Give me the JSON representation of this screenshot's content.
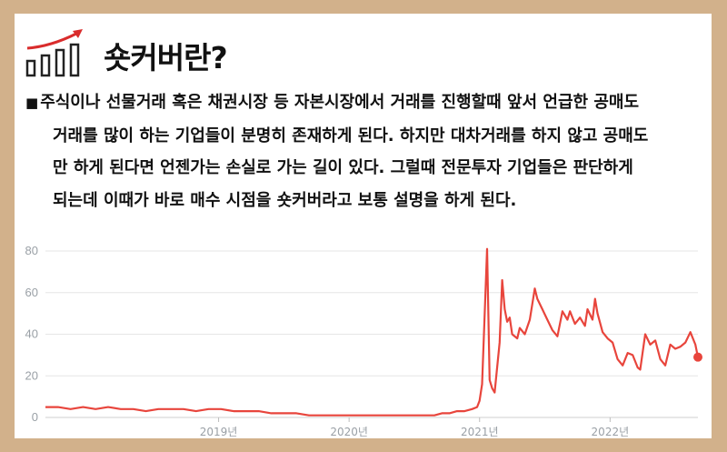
{
  "header": {
    "title": "숏커버란?"
  },
  "paragraph": {
    "bullet": "■",
    "lines": [
      "주식이나 선물거래 혹은 채권시장 등 자본시장에서 거래를 진행할때 앞서 언급한 공매도",
      "거래를 많이 하는 기업들이 분명히 존재하게 된다. 하지만 대차거래를 하지 않고 공매도",
      "만 하게 된다면 언젠가는 손실로 가는 길이 있다. 그럴때 전문투자 기업들은 판단하게",
      "되는데 이때가 바로 매수 시점을 숏커버라고 보통 설명을 하게 된다."
    ]
  },
  "colors": {
    "page_border": "#d2b18b",
    "line": "#e8453c",
    "grid": "#e6e6e6",
    "axis_text": "#9aa0a6"
  },
  "chart_data": {
    "type": "line",
    "x_ticks": [
      {
        "date": "2019-01-06",
        "label": "2019년"
      },
      {
        "date": "2020-01-05",
        "label": "2020년"
      },
      {
        "date": "2021-01-03",
        "label": "2021년"
      },
      {
        "date": "2022-01-02",
        "label": "2022년"
      }
    ],
    "ylim": [
      0,
      80
    ],
    "yticks": [
      0,
      20,
      40,
      60,
      80
    ],
    "grid": true,
    "series": [
      {
        "end_marker": true,
        "points": [
          [
            "2017-09-10",
            5
          ],
          [
            "2017-10-15",
            5
          ],
          [
            "2017-11-19",
            4
          ],
          [
            "2017-12-24",
            5
          ],
          [
            "2018-01-28",
            4
          ],
          [
            "2018-03-04",
            5
          ],
          [
            "2018-04-08",
            4
          ],
          [
            "2018-05-13",
            4
          ],
          [
            "2018-06-17",
            3
          ],
          [
            "2018-07-22",
            4
          ],
          [
            "2018-08-26",
            4
          ],
          [
            "2018-09-30",
            4
          ],
          [
            "2018-11-04",
            3
          ],
          [
            "2018-12-09",
            4
          ],
          [
            "2019-01-13",
            4
          ],
          [
            "2019-02-17",
            3
          ],
          [
            "2019-03-24",
            3
          ],
          [
            "2019-04-28",
            3
          ],
          [
            "2019-06-02",
            2
          ],
          [
            "2019-07-07",
            2
          ],
          [
            "2019-08-11",
            2
          ],
          [
            "2019-09-15",
            1
          ],
          [
            "2019-10-20",
            1
          ],
          [
            "2019-11-24",
            1
          ],
          [
            "2019-12-29",
            1
          ],
          [
            "2020-02-02",
            1
          ],
          [
            "2020-03-08",
            1
          ],
          [
            "2020-04-12",
            1
          ],
          [
            "2020-05-17",
            1
          ],
          [
            "2020-06-21",
            1
          ],
          [
            "2020-07-26",
            1
          ],
          [
            "2020-08-30",
            1
          ],
          [
            "2020-09-20",
            2
          ],
          [
            "2020-10-11",
            2
          ],
          [
            "2020-11-01",
            3
          ],
          [
            "2020-11-22",
            3
          ],
          [
            "2020-12-13",
            4
          ],
          [
            "2020-12-27",
            5
          ],
          [
            "2021-01-03",
            8
          ],
          [
            "2021-01-10",
            16
          ],
          [
            "2021-01-24",
            81
          ],
          [
            "2021-01-31",
            18
          ],
          [
            "2021-02-07",
            14
          ],
          [
            "2021-02-14",
            12
          ],
          [
            "2021-02-28",
            36
          ],
          [
            "2021-03-07",
            66
          ],
          [
            "2021-03-14",
            52
          ],
          [
            "2021-03-21",
            46
          ],
          [
            "2021-03-28",
            48
          ],
          [
            "2021-04-04",
            40
          ],
          [
            "2021-04-18",
            38
          ],
          [
            "2021-04-25",
            43
          ],
          [
            "2021-05-09",
            40
          ],
          [
            "2021-05-23",
            47
          ],
          [
            "2021-06-06",
            62
          ],
          [
            "2021-06-13",
            57
          ],
          [
            "2021-06-27",
            52
          ],
          [
            "2021-07-11",
            47
          ],
          [
            "2021-07-25",
            42
          ],
          [
            "2021-08-08",
            39
          ],
          [
            "2021-08-22",
            51
          ],
          [
            "2021-09-05",
            47
          ],
          [
            "2021-09-12",
            51
          ],
          [
            "2021-09-26",
            45
          ],
          [
            "2021-10-10",
            48
          ],
          [
            "2021-10-24",
            44
          ],
          [
            "2021-10-31",
            52
          ],
          [
            "2021-11-14",
            47
          ],
          [
            "2021-11-21",
            57
          ],
          [
            "2021-11-28",
            50
          ],
          [
            "2021-12-12",
            41
          ],
          [
            "2021-12-26",
            38
          ],
          [
            "2022-01-09",
            36
          ],
          [
            "2022-01-23",
            28
          ],
          [
            "2022-02-06",
            25
          ],
          [
            "2022-02-20",
            31
          ],
          [
            "2022-03-06",
            30
          ],
          [
            "2022-03-20",
            24
          ],
          [
            "2022-03-27",
            23
          ],
          [
            "2022-04-10",
            40
          ],
          [
            "2022-04-24",
            35
          ],
          [
            "2022-05-08",
            37
          ],
          [
            "2022-05-22",
            28
          ],
          [
            "2022-06-05",
            25
          ],
          [
            "2022-06-19",
            35
          ],
          [
            "2022-07-03",
            33
          ],
          [
            "2022-07-17",
            34
          ],
          [
            "2022-07-31",
            36
          ],
          [
            "2022-08-14",
            41
          ],
          [
            "2022-08-28",
            35
          ],
          [
            "2022-09-04",
            29
          ]
        ]
      }
    ]
  }
}
